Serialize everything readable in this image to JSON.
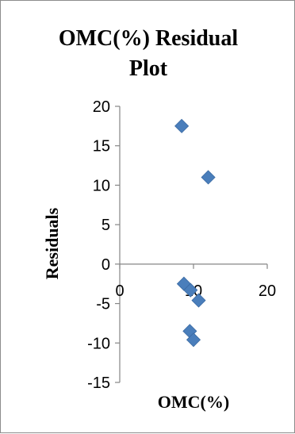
{
  "chart_data": {
    "type": "scatter",
    "title_lines": [
      "OMC(%)  Residual",
      "Plot"
    ],
    "xlabel": "OMC(%)",
    "ylabel": "Residuals",
    "xlim": [
      0,
      20
    ],
    "ylim": [
      -15,
      20
    ],
    "xticks": [
      0,
      10,
      20
    ],
    "yticks": [
      20,
      15,
      10,
      5,
      0,
      -5,
      -10,
      -15
    ],
    "grid": false,
    "marker": "diamond",
    "marker_color": "#4a7ebb",
    "points": [
      {
        "x": 8.4,
        "y": 17.5
      },
      {
        "x": 12.0,
        "y": 11.0
      },
      {
        "x": 8.7,
        "y": -2.5
      },
      {
        "x": 9.6,
        "y": -3.3
      },
      {
        "x": 10.7,
        "y": -4.6
      },
      {
        "x": 9.5,
        "y": -8.5
      },
      {
        "x": 10.0,
        "y": -9.6
      }
    ]
  }
}
